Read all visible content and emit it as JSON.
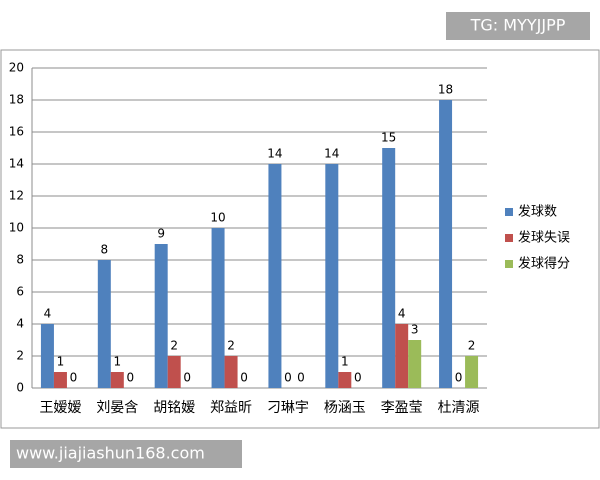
{
  "chart_data": {
    "type": "bar",
    "categories": [
      "王嫒嫒",
      "刘晏含",
      "胡铭嫒",
      "郑益昕",
      "刁琳宇",
      "杨涵玉",
      "李盈莹",
      "杜清源"
    ],
    "series": [
      {
        "name": "发球数",
        "color": "#4f81bd",
        "values": [
          4,
          8,
          9,
          10,
          14,
          14,
          15,
          18
        ]
      },
      {
        "name": "发球失误",
        "color": "#c0504d",
        "values": [
          1,
          1,
          2,
          2,
          0,
          1,
          4,
          0
        ]
      },
      {
        "name": "发球得分",
        "color": "#9bbb59",
        "values": [
          0,
          0,
          0,
          0,
          0,
          0,
          3,
          2
        ]
      }
    ],
    "ylim": [
      0,
      20
    ],
    "yticks": [
      0,
      2,
      4,
      6,
      8,
      10,
      12,
      14,
      16,
      18,
      20
    ],
    "grid": true,
    "legend": "right"
  },
  "watermarks": [
    "TG: MYYJJPP",
    "www.jiajiashun168.com"
  ]
}
